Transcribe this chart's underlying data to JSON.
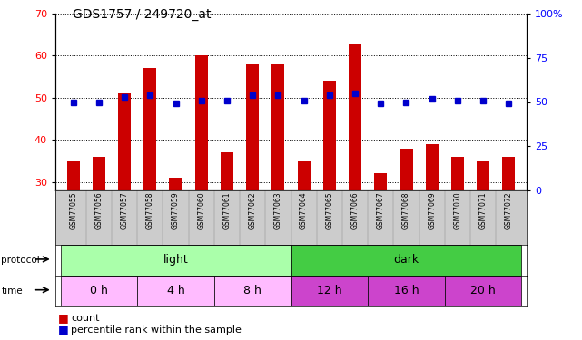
{
  "title": "GDS1757 / 249720_at",
  "samples": [
    "GSM77055",
    "GSM77056",
    "GSM77057",
    "GSM77058",
    "GSM77059",
    "GSM77060",
    "GSM77061",
    "GSM77062",
    "GSM77063",
    "GSM77064",
    "GSM77065",
    "GSM77066",
    "GSM77067",
    "GSM77068",
    "GSM77069",
    "GSM77070",
    "GSM77071",
    "GSM77072"
  ],
  "count_values": [
    35,
    36,
    51,
    57,
    31,
    60,
    37,
    58,
    58,
    35,
    54,
    63,
    32,
    38,
    39,
    36,
    35,
    36
  ],
  "percentile_values": [
    50,
    50,
    53,
    54,
    49,
    51,
    51,
    54,
    54,
    51,
    54,
    55,
    49,
    50,
    52,
    51,
    51,
    49
  ],
  "ylim_left": [
    28,
    70
  ],
  "ylim_right": [
    0,
    100
  ],
  "yticks_left": [
    30,
    40,
    50,
    60,
    70
  ],
  "yticks_right": [
    0,
    25,
    50,
    75,
    100
  ],
  "bar_color": "#cc0000",
  "dot_color": "#0000cc",
  "protocol_light_color": "#aaffaa",
  "protocol_dark_color": "#44cc44",
  "time_light_color": "#ffbbff",
  "time_dark_color": "#cc44cc",
  "proto_groups": [
    {
      "label": "light",
      "start": 0,
      "end": 8,
      "color": "#aaffaa"
    },
    {
      "label": "dark",
      "start": 9,
      "end": 17,
      "color": "#44cc44"
    }
  ],
  "time_groups": [
    {
      "label": "0 h",
      "start": 0,
      "end": 2,
      "color": "#ffbbff"
    },
    {
      "label": "4 h",
      "start": 3,
      "end": 5,
      "color": "#ffbbff"
    },
    {
      "label": "8 h",
      "start": 6,
      "end": 8,
      "color": "#ffbbff"
    },
    {
      "label": "12 h",
      "start": 9,
      "end": 11,
      "color": "#cc44cc"
    },
    {
      "label": "16 h",
      "start": 12,
      "end": 14,
      "color": "#cc44cc"
    },
    {
      "label": "20 h",
      "start": 15,
      "end": 17,
      "color": "#cc44cc"
    }
  ],
  "legend_count_color": "#cc0000",
  "legend_dot_color": "#0000cc",
  "bg_color": "#ffffff",
  "sample_bg_color": "#cccccc"
}
